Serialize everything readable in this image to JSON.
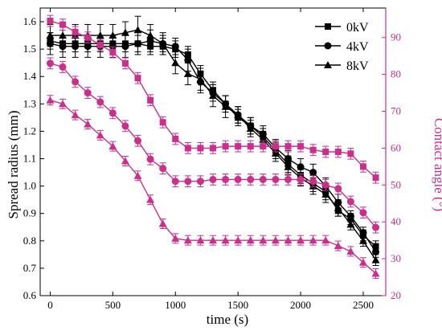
{
  "chart_data": {
    "type": "line",
    "xlabel": "time (s)",
    "ylabel_left": "Spread radius (mm)",
    "ylabel_right": "Contact angle (°)",
    "xlim": [
      -80,
      2680
    ],
    "ylim_left": [
      0.6,
      1.65
    ],
    "ylim_right": [
      20,
      98
    ],
    "x_ticks": [
      0,
      500,
      1000,
      1500,
      2000,
      2500
    ],
    "y_left_ticks": [
      0.6,
      0.7,
      0.8,
      0.9,
      1.0,
      1.1,
      1.2,
      1.3,
      1.4,
      1.5,
      1.6
    ],
    "y_right_ticks": [
      20,
      30,
      40,
      50,
      60,
      70,
      80,
      90
    ],
    "x_tick_labels": [
      "0",
      "500",
      "1000",
      "1500",
      "2000",
      "2500"
    ],
    "y_left_tick_labels": [
      "0.6",
      "0.7",
      "0.8",
      "0.9",
      "1.0",
      "1.1",
      "1.2",
      "1.3",
      "1.4",
      "1.5",
      "1.6"
    ],
    "y_right_tick_labels": [
      "20",
      "30",
      "40",
      "50",
      "60",
      "70",
      "80",
      "90"
    ],
    "legend_position": "top-right",
    "colors": {
      "radius": "#000000",
      "angle": "#cc2e8c"
    },
    "x": [
      0,
      100,
      200,
      300,
      400,
      500,
      600,
      700,
      800,
      900,
      1000,
      1100,
      1200,
      1300,
      1400,
      1500,
      1600,
      1700,
      1800,
      1900,
      2000,
      2100,
      2200,
      2300,
      2400,
      2500,
      2600
    ],
    "series": [
      {
        "name": "0kV",
        "marker": "square",
        "axis": "left",
        "values": [
          1.53,
          1.52,
          1.52,
          1.52,
          1.52,
          1.52,
          1.52,
          1.52,
          1.51,
          1.51,
          1.5,
          1.48,
          1.41,
          1.35,
          1.3,
          1.25,
          1.22,
          1.18,
          1.13,
          1.08,
          1.04,
          1.01,
          0.98,
          0.91,
          0.88,
          0.82,
          0.78
        ],
        "errors": [
          0.03,
          0.03,
          0.03,
          0.03,
          0.03,
          0.03,
          0.03,
          0.03,
          0.03,
          0.03,
          0.03,
          0.03,
          0.03,
          0.03,
          0.03,
          0.03,
          0.03,
          0.03,
          0.03,
          0.03,
          0.03,
          0.03,
          0.03,
          0.02,
          0.02,
          0.02,
          0.02
        ]
      },
      {
        "name": "4kV",
        "marker": "circle",
        "axis": "left",
        "values": [
          1.52,
          1.51,
          1.51,
          1.51,
          1.51,
          1.51,
          1.51,
          1.52,
          1.53,
          1.52,
          1.51,
          1.46,
          1.38,
          1.34,
          1.3,
          1.26,
          1.22,
          1.19,
          1.14,
          1.1,
          1.07,
          1.05,
          1.0,
          0.94,
          0.89,
          0.83,
          0.76
        ],
        "errors": [
          0.04,
          0.04,
          0.04,
          0.04,
          0.04,
          0.04,
          0.04,
          0.04,
          0.04,
          0.03,
          0.03,
          0.04,
          0.04,
          0.03,
          0.03,
          0.03,
          0.03,
          0.03,
          0.03,
          0.03,
          0.03,
          0.03,
          0.03,
          0.03,
          0.02,
          0.02,
          0.02
        ]
      },
      {
        "name": "8kV",
        "marker": "triangle",
        "axis": "left",
        "values": [
          1.55,
          1.55,
          1.55,
          1.55,
          1.55,
          1.55,
          1.56,
          1.57,
          1.55,
          1.52,
          1.45,
          1.41,
          1.39,
          1.33,
          1.29,
          1.26,
          1.21,
          1.17,
          1.12,
          1.07,
          1.03,
          1.0,
          0.97,
          0.92,
          0.86,
          0.8,
          0.73
        ],
        "errors": [
          0.04,
          0.04,
          0.04,
          0.04,
          0.04,
          0.04,
          0.04,
          0.05,
          0.04,
          0.04,
          0.04,
          0.04,
          0.04,
          0.04,
          0.04,
          0.03,
          0.03,
          0.03,
          0.03,
          0.03,
          0.03,
          0.03,
          0.03,
          0.03,
          0.02,
          0.02,
          0.02
        ]
      },
      {
        "name": "0kV contact angle",
        "marker": "square",
        "axis": "right",
        "values": [
          94.5,
          93.5,
          91.5,
          90.0,
          88.0,
          86.0,
          83.0,
          79.0,
          73.0,
          67.0,
          62.5,
          60.0,
          60.0,
          60.0,
          60.5,
          60.5,
          60.5,
          60.5,
          60.5,
          60.5,
          60.5,
          59.5,
          59.0,
          59.0,
          58.5,
          55.0,
          52.0
        ],
        "errors": [
          1.5,
          1.5,
          1.5,
          1.5,
          1.5,
          1.5,
          1.5,
          1.5,
          1.5,
          1.5,
          1.5,
          1.5,
          1.5,
          1.5,
          1.5,
          1.5,
          1.5,
          1.5,
          1.5,
          1.5,
          1.5,
          1.5,
          1.5,
          1.5,
          1.5,
          1.5,
          1.5
        ]
      },
      {
        "name": "4kV contact angle",
        "marker": "circle",
        "axis": "right",
        "values": [
          83.0,
          82.0,
          78.0,
          75.0,
          72.5,
          69.5,
          66.0,
          62.0,
          57.0,
          54.5,
          51.0,
          51.0,
          51.0,
          51.5,
          51.5,
          51.5,
          51.5,
          51.5,
          51.5,
          51.5,
          51.5,
          51.0,
          50.0,
          49.0,
          45.5,
          42.5,
          38.5
        ],
        "errors": [
          1.5,
          1.5,
          1.5,
          1.5,
          1.5,
          1.5,
          1.5,
          1.5,
          1.5,
          1.5,
          1.5,
          1.5,
          1.5,
          1.5,
          1.5,
          1.5,
          1.5,
          1.5,
          1.5,
          1.5,
          1.5,
          1.5,
          1.5,
          1.5,
          1.5,
          1.5,
          1.5
        ]
      },
      {
        "name": "8kV contact angle",
        "marker": "triangle",
        "axis": "right",
        "values": [
          73.0,
          72.0,
          69.0,
          66.5,
          63.5,
          60.5,
          56.5,
          52.5,
          46.0,
          39.5,
          35.5,
          35.0,
          35.0,
          35.0,
          35.0,
          35.0,
          35.0,
          35.0,
          35.0,
          35.0,
          35.0,
          35.0,
          35.0,
          33.5,
          32.0,
          29.0,
          26.0
        ],
        "errors": [
          1.3,
          1.3,
          1.3,
          1.3,
          1.3,
          1.3,
          1.3,
          1.3,
          1.3,
          1.3,
          1.3,
          1.3,
          1.3,
          1.3,
          1.3,
          1.3,
          1.3,
          1.3,
          1.3,
          1.3,
          1.3,
          1.3,
          1.3,
          1.3,
          1.3,
          1.3,
          1.3
        ]
      }
    ]
  }
}
